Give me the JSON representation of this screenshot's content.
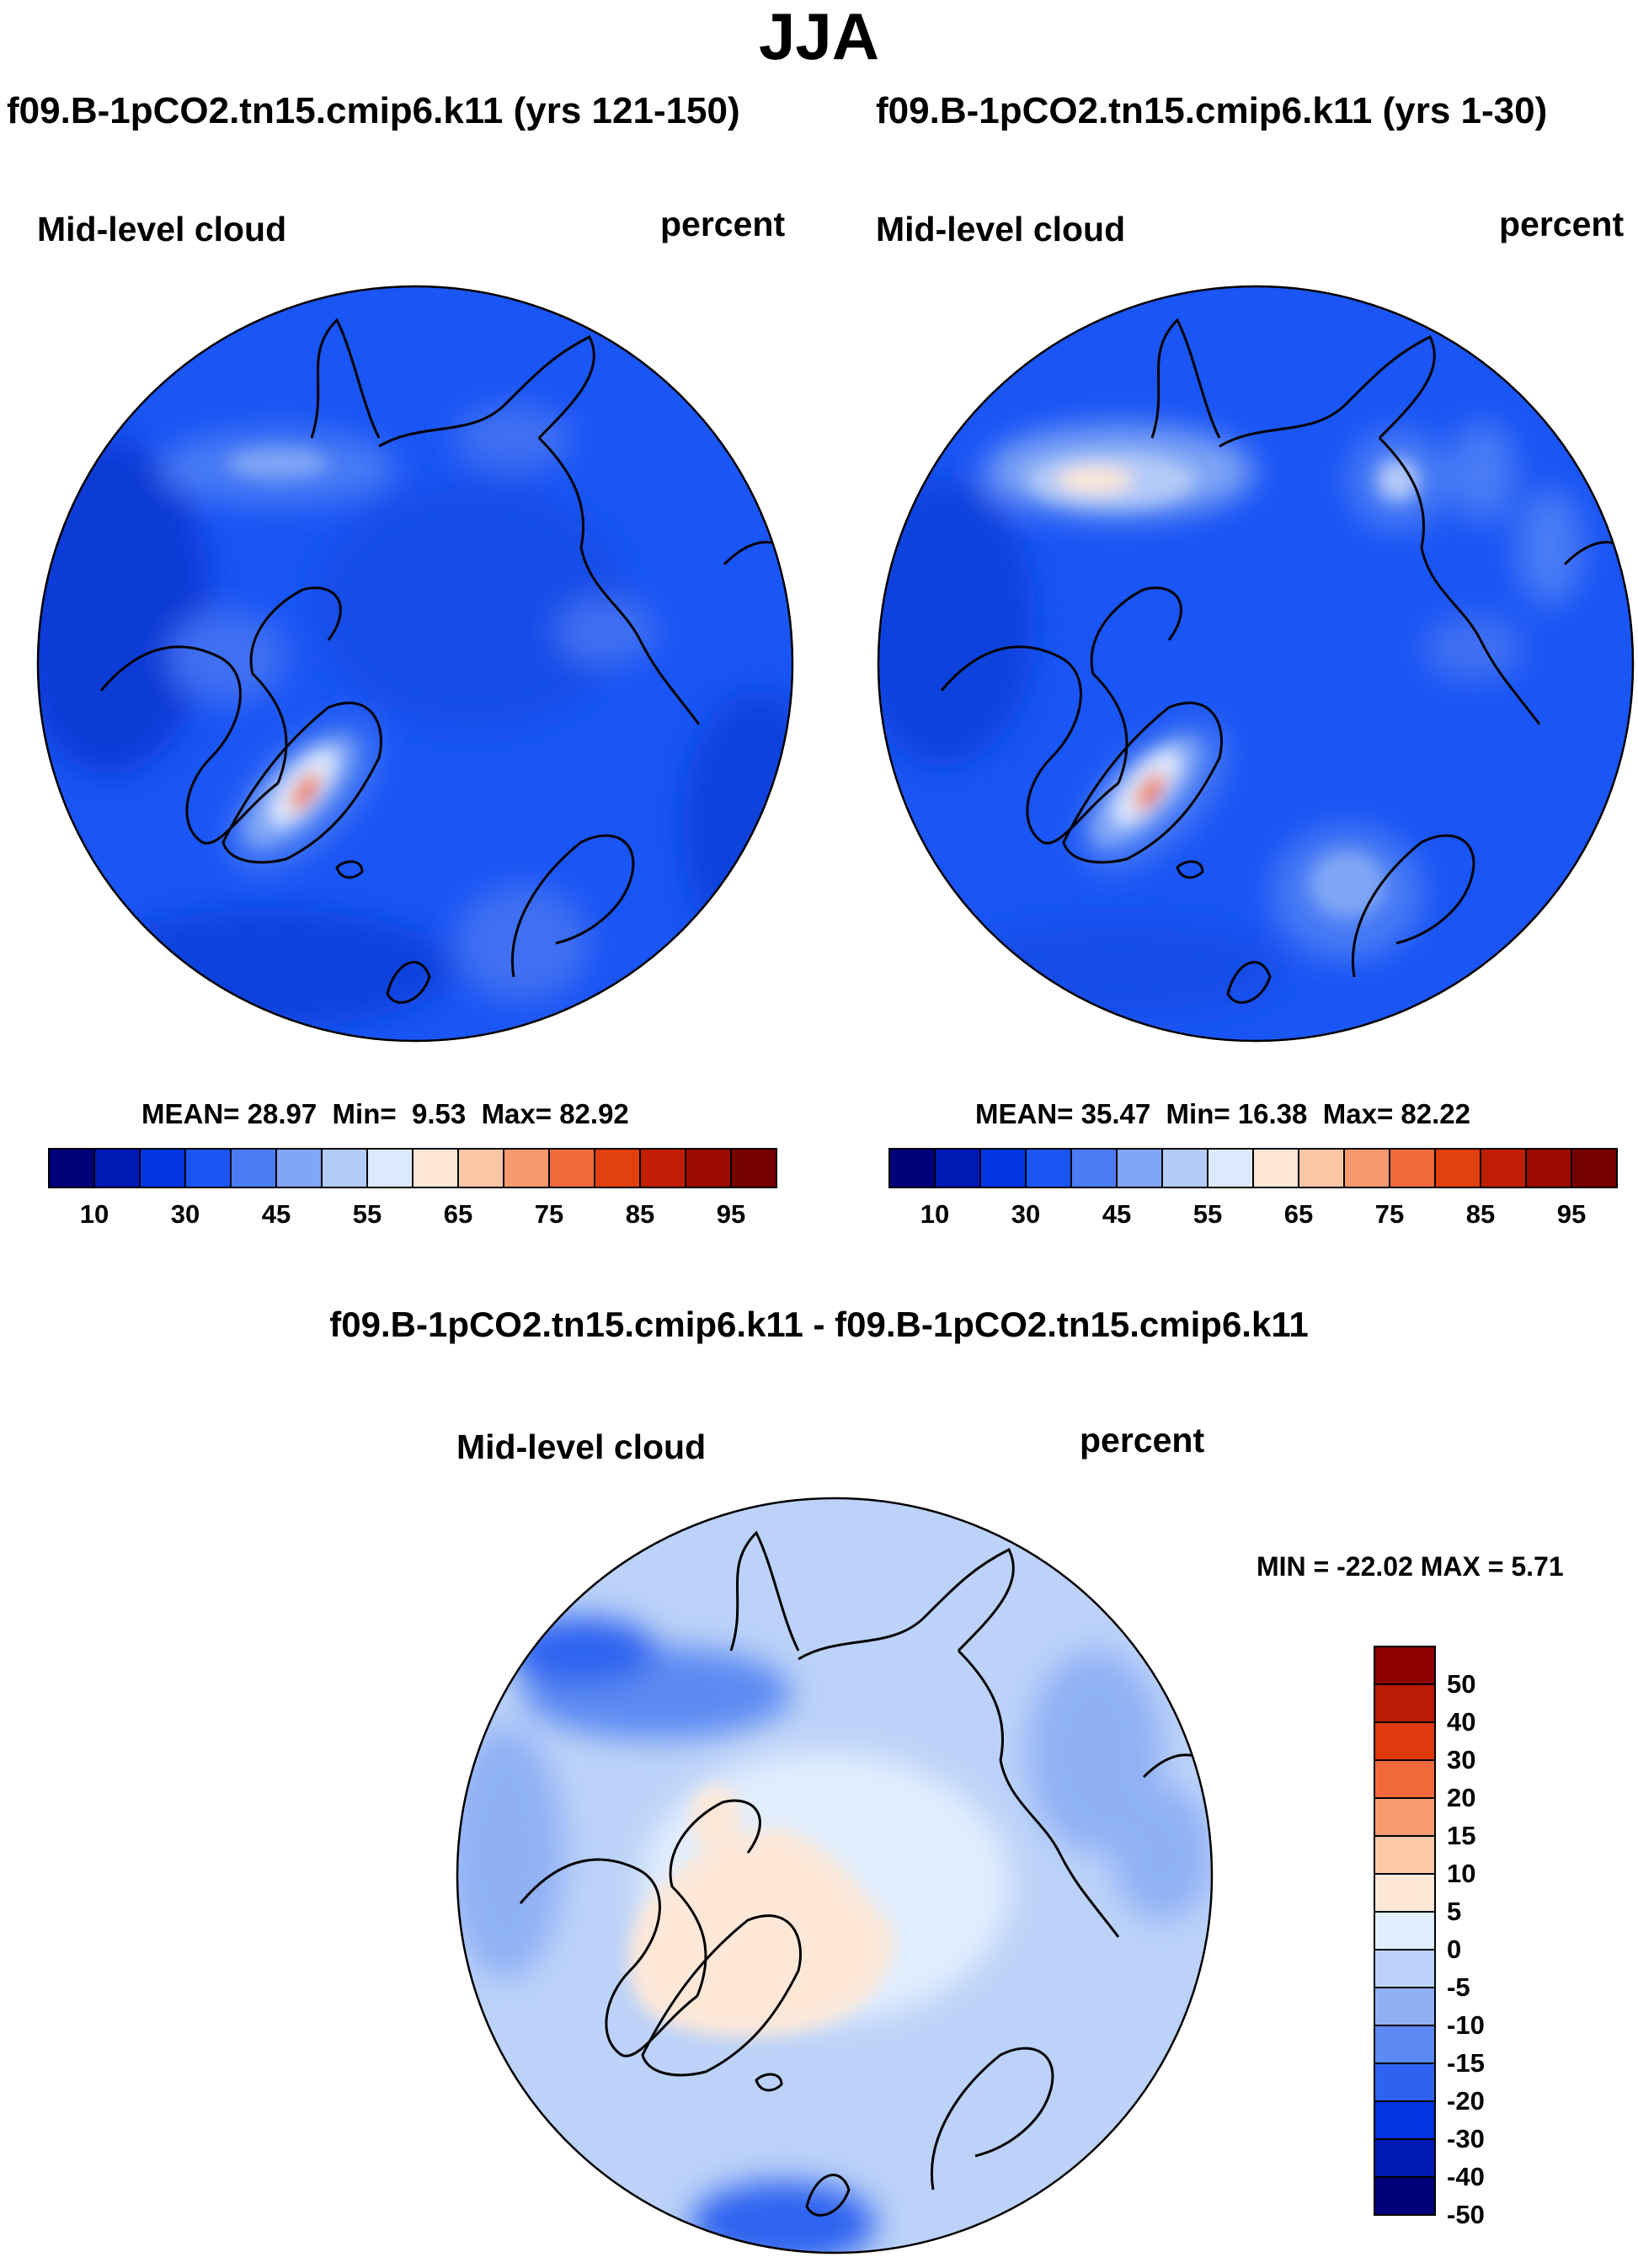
{
  "page_title": "JJA",
  "panels": [
    {
      "id": "left",
      "title": "f09.B-1pCO2.tn15.cmip6.k11 (yrs 121-150)",
      "variable": "Mid-level cloud",
      "units": "percent",
      "stats": {
        "mean_label": "MEAN=",
        "mean": "28.97",
        "min_label": "Min=",
        "min": "9.53",
        "max_label": "Max=",
        "max": "82.92"
      }
    },
    {
      "id": "right",
      "title": "f09.B-1pCO2.tn15.cmip6.k11 (yrs 1-30)",
      "variable": "Mid-level cloud",
      "units": "percent",
      "stats": {
        "mean_label": "MEAN=",
        "mean": "35.47",
        "min_label": "Min=",
        "min": "16.38",
        "max_label": "Max=",
        "max": "82.22"
      }
    }
  ],
  "difference_panel": {
    "title": "f09.B-1pCO2.tn15.cmip6.k11 - f09.B-1pCO2.tn15.cmip6.k11",
    "variable": "Mid-level cloud",
    "units": "percent",
    "minmax": "MIN = -22.02 MAX =   5.71"
  },
  "chart_data": [
    {
      "type": "heatmap",
      "projection": "north polar stereographic",
      "title": "f09.B-1pCO2.tn15.cmip6.k11 (yrs 121-150)",
      "variable": "Mid-level cloud",
      "units": "percent",
      "mean": 28.97,
      "min": 9.53,
      "max": 82.92,
      "colorbar_orientation": "horizontal",
      "levels": [
        10,
        15,
        20,
        25,
        30,
        35,
        40,
        45,
        50,
        55,
        60,
        65,
        70,
        75,
        80,
        85,
        90,
        95
      ],
      "tick_labels": [
        "10",
        "30",
        "45",
        "55",
        "65",
        "75",
        "85",
        "95"
      ]
    },
    {
      "type": "heatmap",
      "projection": "north polar stereographic",
      "title": "f09.B-1pCO2.tn15.cmip6.k11 (yrs 1-30)",
      "variable": "Mid-level cloud",
      "units": "percent",
      "mean": 35.47,
      "min": 16.38,
      "max": 82.22,
      "colorbar_orientation": "horizontal",
      "levels": [
        10,
        15,
        20,
        25,
        30,
        35,
        40,
        45,
        50,
        55,
        60,
        65,
        70,
        75,
        80,
        85,
        90,
        95
      ],
      "tick_labels": [
        "10",
        "30",
        "45",
        "55",
        "65",
        "75",
        "85",
        "95"
      ]
    },
    {
      "type": "heatmap",
      "projection": "north polar stereographic",
      "title": "f09.B-1pCO2.tn15.cmip6.k11 - f09.B-1pCO2.tn15.cmip6.k11",
      "variable": "Mid-level cloud",
      "units": "percent",
      "min": -22.02,
      "max": 5.71,
      "colorbar_orientation": "vertical",
      "levels": [
        -50,
        -40,
        -30,
        -20,
        -15,
        -10,
        -5,
        0,
        5,
        10,
        15,
        20,
        30,
        40,
        50
      ],
      "tick_labels": [
        "50",
        "40",
        "30",
        "20",
        "15",
        "10",
        "5",
        "0",
        "-5",
        "-10",
        "-15",
        "-20",
        "-30",
        "-40",
        "-50"
      ]
    }
  ],
  "colors": {
    "abs_scale": [
      "#00007a",
      "#0019b4",
      "#0035e0",
      "#1a55f5",
      "#4a7cf5",
      "#80a6f5",
      "#b4caf7",
      "#dceaff",
      "#fde6d6",
      "#fbc6a6",
      "#f7996e",
      "#f26a3c",
      "#e2400f",
      "#c01f05",
      "#9a0a02",
      "#760000"
    ],
    "diff_scale": [
      "#00007a",
      "#0019b4",
      "#0035e0",
      "#2d63f0",
      "#5b8af2",
      "#8fb0f5",
      "#bcd2f8",
      "#e1eefe",
      "#fde8d8",
      "#fbc8a8",
      "#f89c70",
      "#f26a3c",
      "#e0390d",
      "#bb1a05",
      "#8c0000"
    ],
    "map_base_abs": "#1a55f5",
    "map_base_diff": "#bcd2f8"
  }
}
